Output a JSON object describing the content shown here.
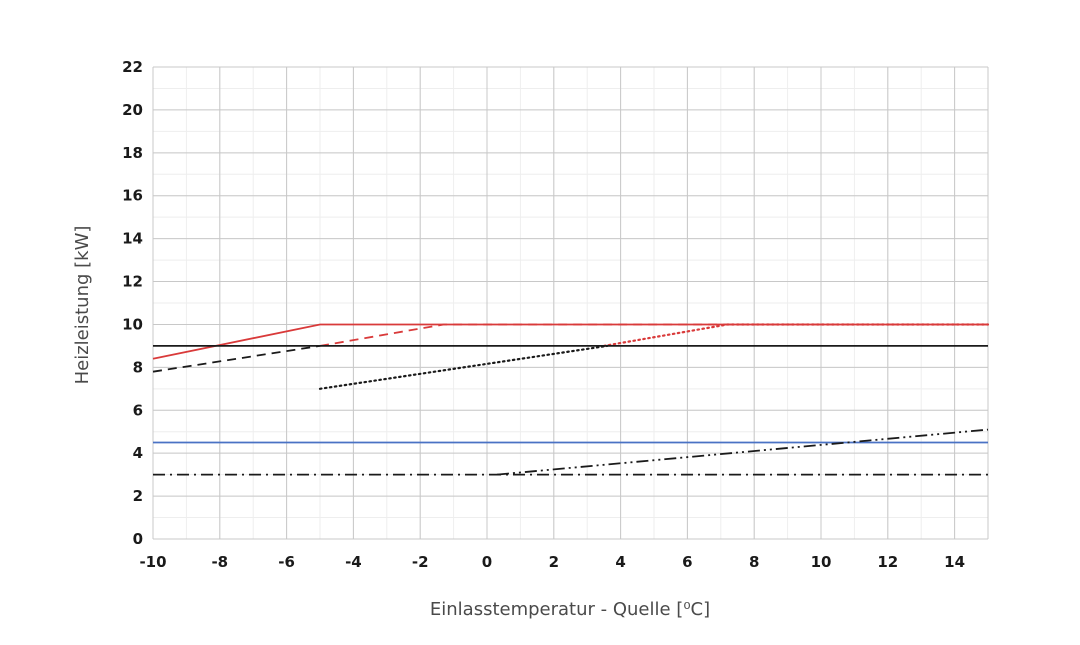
{
  "chart_data": {
    "type": "line",
    "xlabel": "Einlasstemperatur - Quelle [⁰C]",
    "ylabel": "Heizleistung [kW]",
    "xlim": [
      -10,
      15
    ],
    "ylim": [
      0,
      22
    ],
    "x_ticks": [
      -10,
      -8,
      -6,
      -4,
      -2,
      0,
      2,
      4,
      6,
      8,
      10,
      12,
      14
    ],
    "x_tick_labels": [
      "-10",
      "-8",
      "-6",
      "-4",
      "-2",
      "0",
      "2",
      "4",
      "6",
      "8",
      "10",
      "12",
      "14"
    ],
    "y_ticks": [
      0,
      2,
      4,
      6,
      8,
      10,
      12,
      14,
      16,
      18,
      20,
      22
    ],
    "y_tick_labels": [
      "0",
      "2",
      "4",
      "6",
      "8",
      "10",
      "12",
      "14",
      "16",
      "18",
      "20",
      "22"
    ],
    "grid": true,
    "minor_grid": true,
    "series": [
      {
        "color": "#d93a3a",
        "style": "solid",
        "x": [
          -10,
          -5,
          15
        ],
        "y": [
          8.4,
          10,
          10
        ]
      },
      {
        "color": "#d93a3a",
        "style": "dashed",
        "x": [
          -5,
          -1.3,
          15
        ],
        "y": [
          9.0,
          10,
          10
        ]
      },
      {
        "color": "#d93a3a",
        "style": "dotted",
        "x": [
          3.5,
          7.2,
          15
        ],
        "y": [
          9.0,
          10,
          10
        ]
      },
      {
        "color": "#1a1a1a",
        "style": "solid",
        "x": [
          -10,
          15
        ],
        "y": [
          9.0,
          9.0
        ]
      },
      {
        "color": "#1a1a1a",
        "style": "dashed",
        "x": [
          -10,
          -5
        ],
        "y": [
          7.8,
          9.0
        ]
      },
      {
        "color": "#1a1a1a",
        "style": "dotted",
        "x": [
          -5,
          3.6
        ],
        "y": [
          7.0,
          9.0
        ]
      },
      {
        "color": "#4a72c4",
        "style": "solid",
        "x": [
          -10,
          15
        ],
        "y": [
          4.5,
          4.5
        ]
      },
      {
        "color": "#1a1a1a",
        "style": "dashdot",
        "x": [
          -10,
          15
        ],
        "y": [
          3.0,
          3.0
        ]
      },
      {
        "color": "#1a1a1a",
        "style": "dashdotdot",
        "x": [
          0.3,
          15
        ],
        "y": [
          3.0,
          5.1
        ]
      }
    ]
  }
}
